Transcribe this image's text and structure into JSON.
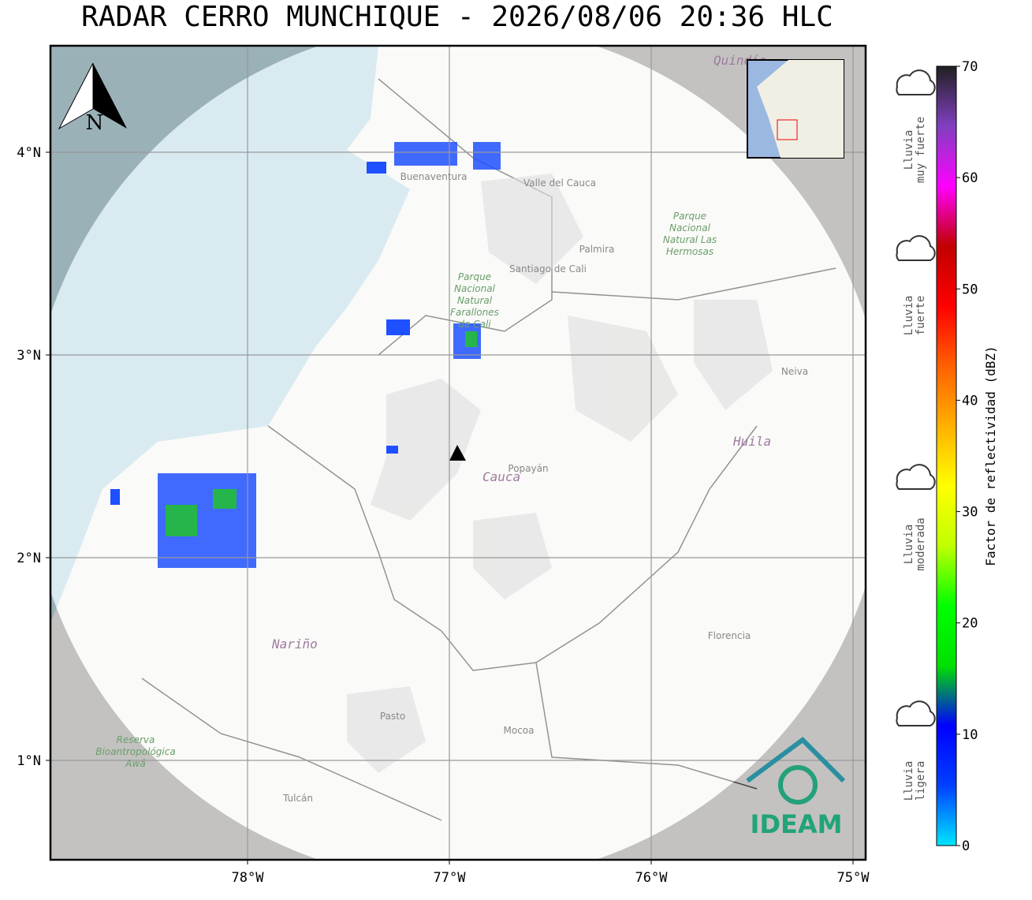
{
  "title": "RADAR CERRO MUNCHIQUE - 2026/08/06 20:36 HLC",
  "map": {
    "north": "N",
    "lon_ticks": [
      {
        "value": -78,
        "label": "78°W"
      },
      {
        "value": -77,
        "label": "77°W"
      },
      {
        "value": -76,
        "label": "76°W"
      },
      {
        "value": -75,
        "label": "75°W"
      }
    ],
    "lat_ticks": [
      {
        "value": 4,
        "label": "4°N"
      },
      {
        "value": 3,
        "label": "3°N"
      },
      {
        "value": 2,
        "label": "2°N"
      },
      {
        "value": 1,
        "label": "1°N"
      }
    ],
    "places": [
      "Buenaventura",
      "Valle del Cauca",
      "Quindío",
      "Palmira",
      "Santiago de Cali",
      "Parque Nacional Natural Farallones de Cali",
      "Parque Nacional Natural Las Hermosas",
      "Neiva",
      "Huila",
      "Cauca",
      "Popayán",
      "Nariño",
      "Pasto",
      "Mocoa",
      "Florencia",
      "Reserva Bioantropológica Awá",
      "Tulcán"
    ],
    "logo": "IDEAM"
  },
  "colorbar": {
    "label": "Factor de reflectividad (dBZ)",
    "range": [
      0,
      70
    ],
    "ticks": [
      0,
      10,
      20,
      30,
      40,
      50,
      60,
      70
    ],
    "colors": [
      "#00e5ff",
      "#0040ff",
      "#0000ff",
      "#00e000",
      "#00ff00",
      "#c0ff00",
      "#ffff00",
      "#ffb000",
      "#ff6000",
      "#ff0000",
      "#c00000",
      "#ff00ff",
      "#8040c0",
      "#202020"
    ]
  },
  "rain_levels": [
    {
      "lines": [
        "Lluvia",
        "muy fuerte"
      ]
    },
    {
      "lines": [
        "Lluvia",
        "fuerte"
      ]
    },
    {
      "lines": [
        "Lluvia",
        "moderada"
      ]
    },
    {
      "lines": [
        "Lluvia",
        "ligera"
      ]
    }
  ]
}
